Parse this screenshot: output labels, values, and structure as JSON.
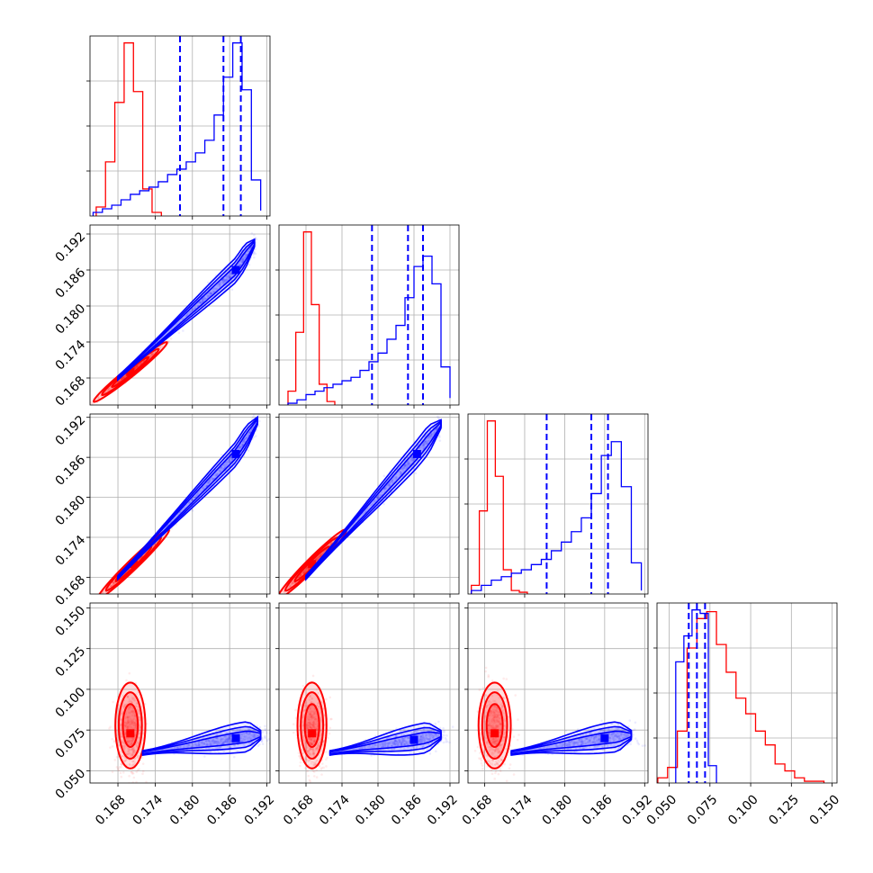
{
  "chart_data": {
    "type": "scatter",
    "subtype": "corner-plot",
    "title": "",
    "grid": true,
    "legend": null,
    "colors": {
      "red": "#ff0000",
      "blue": "#0000ff"
    },
    "axes": {
      "p0": {
        "range": [
          0.1635,
          0.1925
        ],
        "ticks": [
          0.168,
          0.174,
          0.18,
          0.186,
          0.192
        ],
        "tick_labels": [
          "0.168",
          "0.174",
          "0.180",
          "0.186",
          "0.192"
        ]
      },
      "p1": {
        "range": [
          0.1635,
          0.1935
        ],
        "ticks": [
          0.168,
          0.174,
          0.18,
          0.186,
          0.192
        ],
        "tick_labels": [
          "0.168",
          "0.174",
          "0.180",
          "0.186",
          "0.192"
        ]
      },
      "p2": {
        "range": [
          0.1655,
          0.1925
        ],
        "ticks": [
          0.168,
          0.174,
          0.18,
          0.186,
          0.192
        ],
        "tick_labels": [
          "0.168",
          "0.174",
          "0.180",
          "0.186",
          "0.192"
        ]
      },
      "p3": {
        "range": [
          0.0425,
          0.153
        ],
        "ticks": [
          0.05,
          0.075,
          0.1,
          0.125,
          0.15
        ],
        "tick_labels": [
          "0.050",
          "0.075",
          "0.100",
          "0.125",
          "0.150"
        ]
      }
    },
    "series": [
      {
        "color": "#ff0000",
        "params": [
          {
            "hist_bins": [
              0.1645,
              0.166,
              0.1675,
              0.169,
              0.1705,
              0.172,
              0.1735,
              0.175
            ],
            "hist_counts": [
              5,
              30,
              63,
              96,
              69,
              15,
              2
            ]
          },
          {
            "hist_bins": [
              0.165,
              0.1663,
              0.1676,
              0.1689,
              0.1702,
              0.1715,
              0.1728
            ],
            "hist_counts": [
              8,
              42,
              100,
              58,
              12,
              2
            ]
          },
          {
            "hist_bins": [
              0.166,
              0.1672,
              0.1684,
              0.1696,
              0.1708,
              0.172,
              0.1732,
              0.1744
            ],
            "hist_counts": [
              5,
              48,
              100,
              68,
              14,
              2,
              1
            ]
          },
          {
            "hist_bins": [
              0.043,
              0.049,
              0.055,
              0.061,
              0.067,
              0.073,
              0.079,
              0.085,
              0.091,
              0.097,
              0.103,
              0.109,
              0.115,
              0.121,
              0.127,
              0.133,
              0.139,
              0.145
            ],
            "hist_counts": [
              3,
              9,
              30,
              78,
              95,
              99,
              80,
              64,
              49,
              40,
              30,
              22,
              11,
              7,
              3,
              1,
              1
            ]
          }
        ],
        "pairs": [
          {
            "x": "p0",
            "y": "p1",
            "peak": [
              0.17,
              0.169
            ],
            "angle": 40,
            "sd_major": 0.0035,
            "sd_minor": 0.00022
          },
          {
            "x": "p0",
            "y": "p2",
            "peak": [
              0.1705,
              0.17
            ],
            "angle": 42,
            "sd_major": 0.0035,
            "sd_minor": 0.00022
          },
          {
            "x": "p1",
            "y": "p2",
            "peak": [
              0.169,
              0.17
            ],
            "angle": 42,
            "sd_major": 0.0035,
            "sd_minor": 0.00025
          },
          {
            "x": "p0",
            "y": "p3",
            "peak": [
              0.17,
              0.073
            ],
            "sd_x": 0.0011,
            "sd_y": 0.012
          },
          {
            "x": "p1",
            "y": "p3",
            "peak": [
              0.169,
              0.073
            ],
            "sd_x": 0.0011,
            "sd_y": 0.012
          },
          {
            "x": "p2",
            "y": "p3",
            "peak": [
              0.1695,
              0.073
            ],
            "sd_x": 0.0011,
            "sd_y": 0.012
          }
        ]
      },
      {
        "color": "#0000ff",
        "params": [
          {
            "quantiles": [
              0.178,
              0.185,
              0.1878
            ],
            "hist_bins": [
              0.164,
              0.1655,
              0.167,
              0.1685,
              0.17,
              0.1715,
              0.173,
              0.1745,
              0.176,
              0.1775,
              0.179,
              0.1805,
              0.182,
              0.1835,
              0.185,
              0.1865,
              0.188,
              0.1895,
              0.191
            ],
            "hist_counts": [
              2,
              4,
              6,
              9,
              12,
              14,
              16,
              19,
              23,
              26,
              30,
              35,
              42,
              56,
              77,
              96,
              70,
              20,
              3
            ]
          },
          {
            "quantiles": [
              0.179,
              0.185,
              0.1875
            ],
            "hist_bins": [
              0.165,
              0.1665,
              0.168,
              0.1695,
              0.171,
              0.1725,
              0.174,
              0.1755,
              0.177,
              0.1785,
              0.18,
              0.1815,
              0.183,
              0.1845,
              0.186,
              0.1875,
              0.189,
              0.1905,
              0.192
            ],
            "hist_counts": [
              1,
              3,
              6,
              8,
              10,
              12,
              14,
              16,
              20,
              25,
              30,
              38,
              46,
              62,
              80,
              86,
              70,
              22,
              4
            ]
          },
          {
            "quantiles": [
              0.1773,
              0.184,
              0.1865
            ],
            "hist_bins": [
              0.166,
              0.1675,
              0.169,
              0.1705,
              0.172,
              0.1735,
              0.175,
              0.1765,
              0.178,
              0.1795,
              0.181,
              0.1825,
              0.184,
              0.1855,
              0.187,
              0.1885,
              0.19,
              0.1915
            ],
            "hist_counts": [
              2,
              5,
              8,
              10,
              12,
              14,
              17,
              20,
              25,
              30,
              36,
              44,
              58,
              80,
              88,
              62,
              18,
              2
            ]
          },
          {
            "quantiles": [
              0.062,
              0.067,
              0.072
            ],
            "hist_bins": [
              0.054,
              0.059,
              0.064,
              0.069,
              0.074,
              0.079
            ],
            "hist_counts": [
              70,
              85,
              100,
              98,
              10
            ]
          }
        ],
        "pairs": [
          {
            "x": "p0",
            "y": "p1",
            "start": [
              0.168,
              0.168
            ],
            "peak": [
              0.187,
              0.186
            ],
            "end": [
              0.19,
              0.1905
            ],
            "width": 0.0008
          },
          {
            "x": "p0",
            "y": "p2",
            "start": [
              0.168,
              0.168
            ],
            "peak": [
              0.187,
              0.1865
            ],
            "end": [
              0.1905,
              0.1915
            ],
            "width": 0.0007
          },
          {
            "x": "p1",
            "y": "p2",
            "start": [
              0.168,
              0.168
            ],
            "peak": [
              0.1865,
              0.1865
            ],
            "end": [
              0.1905,
              0.191
            ],
            "width": 0.0008
          },
          {
            "x": "p0",
            "y": "p3",
            "start": [
              0.172,
              0.061
            ],
            "peak": [
              0.187,
              0.07
            ],
            "end": [
              0.191,
              0.072
            ],
            "width": 0.0035
          },
          {
            "x": "p1",
            "y": "p3",
            "start": [
              0.172,
              0.061
            ],
            "peak": [
              0.186,
              0.069
            ],
            "end": [
              0.1905,
              0.072
            ],
            "width": 0.0035
          },
          {
            "x": "p2",
            "y": "p3",
            "start": [
              0.172,
              0.061
            ],
            "peak": [
              0.186,
              0.07
            ],
            "end": [
              0.19,
              0.072
            ],
            "width": 0.0035
          }
        ]
      }
    ]
  }
}
